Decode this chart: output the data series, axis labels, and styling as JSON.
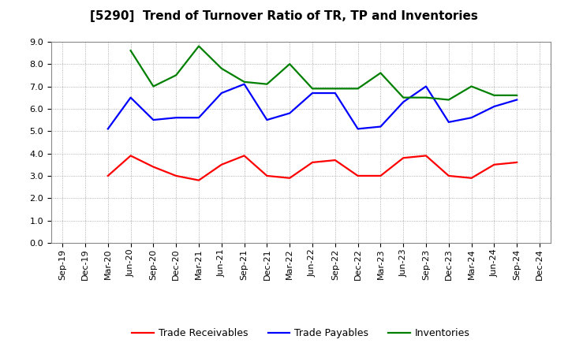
{
  "title": "[5290]  Trend of Turnover Ratio of TR, TP and Inventories",
  "ylim": [
    0.0,
    9.0
  ],
  "yticks": [
    0.0,
    1.0,
    2.0,
    3.0,
    4.0,
    5.0,
    6.0,
    7.0,
    8.0,
    9.0
  ],
  "x_labels": [
    "Sep-19",
    "Dec-19",
    "Mar-20",
    "Jun-20",
    "Sep-20",
    "Dec-20",
    "Mar-21",
    "Jun-21",
    "Sep-21",
    "Dec-21",
    "Mar-22",
    "Jun-22",
    "Sep-22",
    "Dec-22",
    "Mar-23",
    "Jun-23",
    "Sep-23",
    "Dec-23",
    "Mar-24",
    "Jun-24",
    "Sep-24",
    "Dec-24"
  ],
  "trade_receivables": [
    null,
    null,
    3.0,
    3.9,
    3.4,
    3.0,
    2.8,
    3.5,
    3.9,
    3.0,
    2.9,
    3.6,
    3.7,
    3.0,
    3.0,
    3.8,
    3.9,
    3.0,
    2.9,
    3.5,
    3.6,
    null
  ],
  "trade_payables": [
    null,
    null,
    5.1,
    6.5,
    5.5,
    5.6,
    5.6,
    6.7,
    7.1,
    5.5,
    5.8,
    6.7,
    6.7,
    5.1,
    5.2,
    6.3,
    7.0,
    5.4,
    5.6,
    6.1,
    6.4,
    null
  ],
  "inventories": [
    null,
    null,
    null,
    8.6,
    7.0,
    7.5,
    8.8,
    7.8,
    7.2,
    7.1,
    8.0,
    6.9,
    6.9,
    6.9,
    7.6,
    6.5,
    6.5,
    6.4,
    7.0,
    6.6,
    6.6,
    null
  ],
  "tr_color": "#ff0000",
  "tp_color": "#0000ff",
  "inv_color": "#008000",
  "bg_color": "#ffffff",
  "grid_color": "#999999",
  "title_fontsize": 11,
  "legend_fontsize": 9,
  "tick_fontsize": 8
}
